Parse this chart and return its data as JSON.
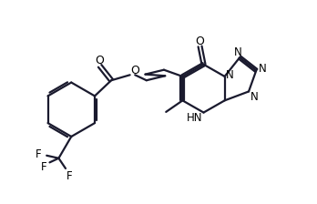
{
  "background_color": "#ffffff",
  "line_color": "#1a1a2e",
  "line_width": 1.6,
  "dbo": 0.055,
  "figsize": [
    3.48,
    2.24
  ],
  "dpi": 100,
  "xlim": [
    0,
    10.5
  ],
  "ylim": [
    0,
    6.0
  ]
}
